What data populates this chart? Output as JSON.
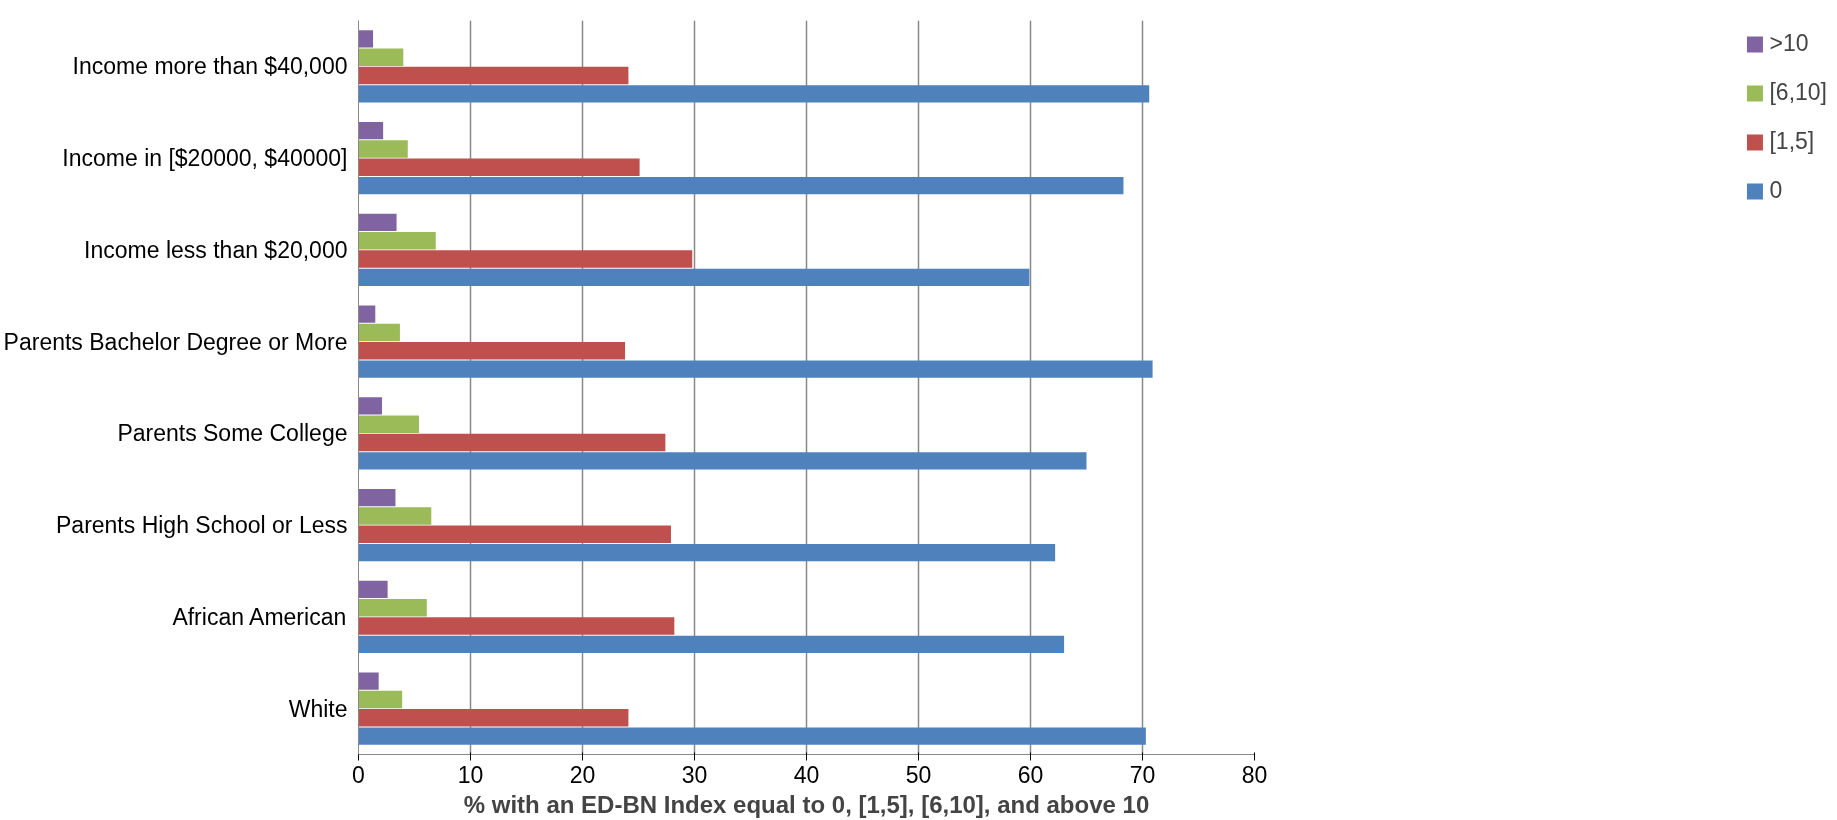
{
  "chart_data": {
    "type": "bar",
    "orientation": "horizontal",
    "xlabel": "% with an ED-BN Index equal to 0, [1,5], [6,10], and above 10",
    "categories": [
      "Income more than $40,000",
      "Income in [$20000, $40000]",
      "Income less than $20,000",
      "Parents Bachelor Degree or More",
      "Parents Some College",
      "Parents High School or Less",
      "African American",
      "White"
    ],
    "series": [
      {
        "name": "0",
        "color": "#4f81bd",
        "values": [
          70.6,
          68.3,
          59.9,
          70.9,
          65.0,
          62.2,
          63.0,
          70.3
        ]
      },
      {
        "name": "[1,5]",
        "color": "#c0504d",
        "values": [
          24.1,
          25.1,
          29.8,
          23.8,
          27.4,
          27.9,
          28.2,
          24.1
        ]
      },
      {
        "name": "[6,10]",
        "color": "#9bbb59",
        "values": [
          4.0,
          4.4,
          6.9,
          3.7,
          5.4,
          6.5,
          6.1,
          3.9
        ]
      },
      {
        "name": ">10",
        "color": "#8064a2",
        "values": [
          1.3,
          2.2,
          3.4,
          1.5,
          2.1,
          3.3,
          2.6,
          1.8
        ]
      }
    ],
    "xlim": [
      0,
      80
    ],
    "xticks": [
      0,
      10,
      20,
      30,
      40,
      50,
      60,
      70,
      80
    ],
    "grid": "x",
    "legend": "right"
  }
}
